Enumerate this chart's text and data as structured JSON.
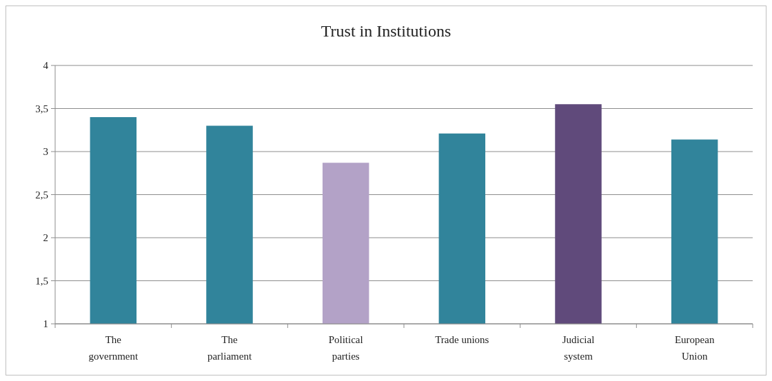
{
  "chart_data": {
    "type": "bar",
    "title": "Trust in Institutions",
    "categories": [
      "The\ngovernment",
      "The\nparliament",
      "Political\nparties",
      "Trade unions",
      "Judicial\nsystem",
      "European\nUnion"
    ],
    "values": [
      3.4,
      3.3,
      2.87,
      3.21,
      3.55,
      3.14
    ],
    "colors": [
      "#31849b",
      "#31849b",
      "#b3a2c7",
      "#31849b",
      "#604a7b",
      "#31849b"
    ],
    "ylim": [
      1,
      4
    ],
    "yticks": [
      1,
      {
        "value": 1.5,
        "label": "1,5"
      },
      2,
      {
        "value": 2.5,
        "label": "2,5"
      },
      3,
      {
        "value": 3.5,
        "label": "3,5"
      },
      4
    ],
    "grid": "y"
  }
}
